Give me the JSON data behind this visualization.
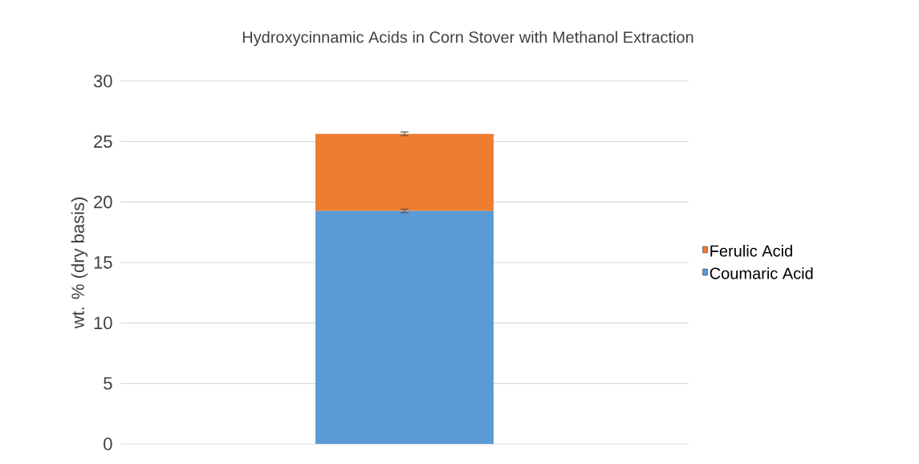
{
  "chart_data": {
    "type": "bar",
    "title": "Hydroxycinnamic Acids in Corn Stover with Methanol Extraction",
    "ylabel": "wt. % (dry basis)",
    "categories": [
      null
    ],
    "stacked": true,
    "series": [
      {
        "name": "Coumaric Acid",
        "color": "#5b9bd5",
        "values": [
          19.26
        ],
        "errors": [
          0.15
        ]
      },
      {
        "name": "Ferulic Acid",
        "color": "#ed7d31",
        "values": [
          6.38
        ],
        "errors": [
          0.15
        ]
      }
    ],
    "ylim": [
      0,
      30
    ],
    "yticks": [
      0,
      5,
      10,
      15,
      20,
      25,
      30
    ],
    "grid": "y",
    "legend": "right"
  }
}
